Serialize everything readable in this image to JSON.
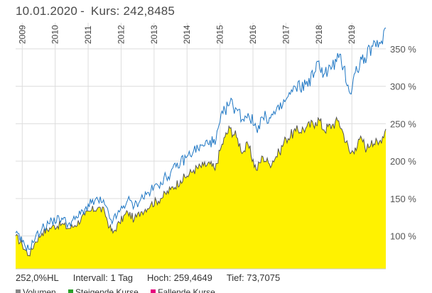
{
  "header": {
    "date": "10.01.2020",
    "separator": "-",
    "kurs_label": "Kurs:",
    "kurs_value": "242,8485"
  },
  "stats": {
    "performance": "252,0%HL",
    "interval": "Intervall: 1 Tag",
    "high": "Hoch: 259,4649",
    "low": "Tief: 73,7075"
  },
  "legend": {
    "items": [
      {
        "label": "Volumen",
        "color": "#888888"
      },
      {
        "label": "Steigende Kurse",
        "color": "#2ca02c"
      },
      {
        "label": "Fallende Kurse",
        "color": "#e5007d"
      }
    ]
  },
  "colors": {
    "area_fill": "#fff200",
    "price_line": "#555555",
    "benchmark_line": "#1f77c4",
    "grid": "#dddddd"
  },
  "chart_data": {
    "type": "area",
    "x_axis": {
      "years": [
        "2009",
        "2010",
        "2011",
        "2012",
        "2013",
        "2014",
        "2015",
        "2016",
        "2017",
        "2018",
        "2019"
      ],
      "orientation": "vertical",
      "position": "top"
    },
    "y_axis": {
      "ticks": [
        "100 %",
        "150 %",
        "200 %",
        "250 %",
        "300 %",
        "350 %"
      ],
      "tick_values": [
        100,
        150,
        200,
        250,
        300,
        350
      ],
      "ylim": [
        56,
        385
      ],
      "position": "right"
    },
    "x_range": [
      2008.8,
      2020.03
    ],
    "series": [
      {
        "style": "area",
        "points": [
          [
            2008.8,
            100
          ],
          [
            2009.0,
            88
          ],
          [
            2009.2,
            74
          ],
          [
            2009.4,
            92
          ],
          [
            2009.6,
            104
          ],
          [
            2009.9,
            112
          ],
          [
            2010.2,
            116
          ],
          [
            2010.4,
            110
          ],
          [
            2010.6,
            114
          ],
          [
            2010.9,
            128
          ],
          [
            2011.1,
            134
          ],
          [
            2011.3,
            138
          ],
          [
            2011.5,
            132
          ],
          [
            2011.65,
            112
          ],
          [
            2011.75,
            104
          ],
          [
            2011.95,
            118
          ],
          [
            2012.2,
            132
          ],
          [
            2012.4,
            122
          ],
          [
            2012.6,
            132
          ],
          [
            2012.9,
            142
          ],
          [
            2013.2,
            150
          ],
          [
            2013.5,
            162
          ],
          [
            2013.8,
            174
          ],
          [
            2014.0,
            180
          ],
          [
            2014.2,
            188
          ],
          [
            2014.5,
            194
          ],
          [
            2014.7,
            196
          ],
          [
            2014.85,
            188
          ],
          [
            2015.0,
            214
          ],
          [
            2015.15,
            232
          ],
          [
            2015.3,
            244
          ],
          [
            2015.5,
            232
          ],
          [
            2015.7,
            212
          ],
          [
            2015.85,
            222
          ],
          [
            2016.1,
            188
          ],
          [
            2016.3,
            206
          ],
          [
            2016.5,
            196
          ],
          [
            2016.8,
            212
          ],
          [
            2017.0,
            230
          ],
          [
            2017.3,
            240
          ],
          [
            2017.6,
            244
          ],
          [
            2017.9,
            252
          ],
          [
            2018.0,
            256
          ],
          [
            2018.15,
            242
          ],
          [
            2018.4,
            248
          ],
          [
            2018.6,
            254
          ],
          [
            2018.75,
            236
          ],
          [
            2018.95,
            210
          ],
          [
            2019.1,
            218
          ],
          [
            2019.3,
            230
          ],
          [
            2019.45,
            216
          ],
          [
            2019.6,
            228
          ],
          [
            2019.8,
            222
          ],
          [
            2020.03,
            243
          ]
        ]
      },
      {
        "style": "line",
        "points": [
          [
            2008.8,
            104
          ],
          [
            2009.0,
            92
          ],
          [
            2009.2,
            82
          ],
          [
            2009.4,
            98
          ],
          [
            2009.6,
            110
          ],
          [
            2009.9,
            120
          ],
          [
            2010.2,
            124
          ],
          [
            2010.4,
            116
          ],
          [
            2010.6,
            122
          ],
          [
            2010.9,
            136
          ],
          [
            2011.1,
            144
          ],
          [
            2011.3,
            148
          ],
          [
            2011.5,
            142
          ],
          [
            2011.65,
            124
          ],
          [
            2011.75,
            120
          ],
          [
            2011.95,
            132
          ],
          [
            2012.2,
            148
          ],
          [
            2012.4,
            140
          ],
          [
            2012.6,
            150
          ],
          [
            2012.9,
            160
          ],
          [
            2013.2,
            172
          ],
          [
            2013.5,
            184
          ],
          [
            2013.8,
            198
          ],
          [
            2014.0,
            206
          ],
          [
            2014.2,
            214
          ],
          [
            2014.5,
            220
          ],
          [
            2014.7,
            228
          ],
          [
            2014.85,
            222
          ],
          [
            2015.0,
            252
          ],
          [
            2015.15,
            268
          ],
          [
            2015.3,
            278
          ],
          [
            2015.5,
            270
          ],
          [
            2015.7,
            256
          ],
          [
            2015.85,
            264
          ],
          [
            2016.1,
            244
          ],
          [
            2016.3,
            258
          ],
          [
            2016.5,
            258
          ],
          [
            2016.8,
            268
          ],
          [
            2017.0,
            282
          ],
          [
            2017.3,
            298
          ],
          [
            2017.6,
            302
          ],
          [
            2017.9,
            320
          ],
          [
            2018.0,
            334
          ],
          [
            2018.15,
            316
          ],
          [
            2018.4,
            326
          ],
          [
            2018.6,
            338
          ],
          [
            2018.75,
            326
          ],
          [
            2018.95,
            290
          ],
          [
            2019.1,
            318
          ],
          [
            2019.3,
            336
          ],
          [
            2019.45,
            338
          ],
          [
            2019.6,
            354
          ],
          [
            2019.8,
            352
          ],
          [
            2020.03,
            378
          ]
        ]
      }
    ]
  }
}
